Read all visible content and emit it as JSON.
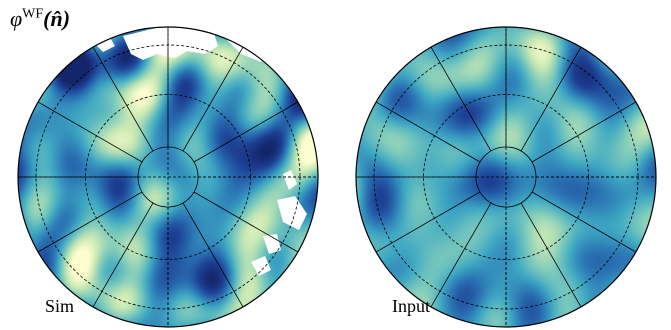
{
  "title": {
    "symbol": "φ",
    "superscript": "WF",
    "argument": "(n̂)"
  },
  "panels": [
    {
      "label": "Sim",
      "seed": 7,
      "masked": true,
      "contrast": 1.0
    },
    {
      "label": "Input",
      "seed": 21,
      "masked": false,
      "contrast": 0.7
    }
  ],
  "colormap": {
    "name": "YlGnBu",
    "stops": [
      "#fdfed0",
      "#c9e8b4",
      "#7ecbbb",
      "#3fa8c3",
      "#2a72b3",
      "#1d3f94",
      "#14266a"
    ]
  },
  "graticule": {
    "rings": 3,
    "meridians": 12,
    "line_color": "#000000"
  }
}
